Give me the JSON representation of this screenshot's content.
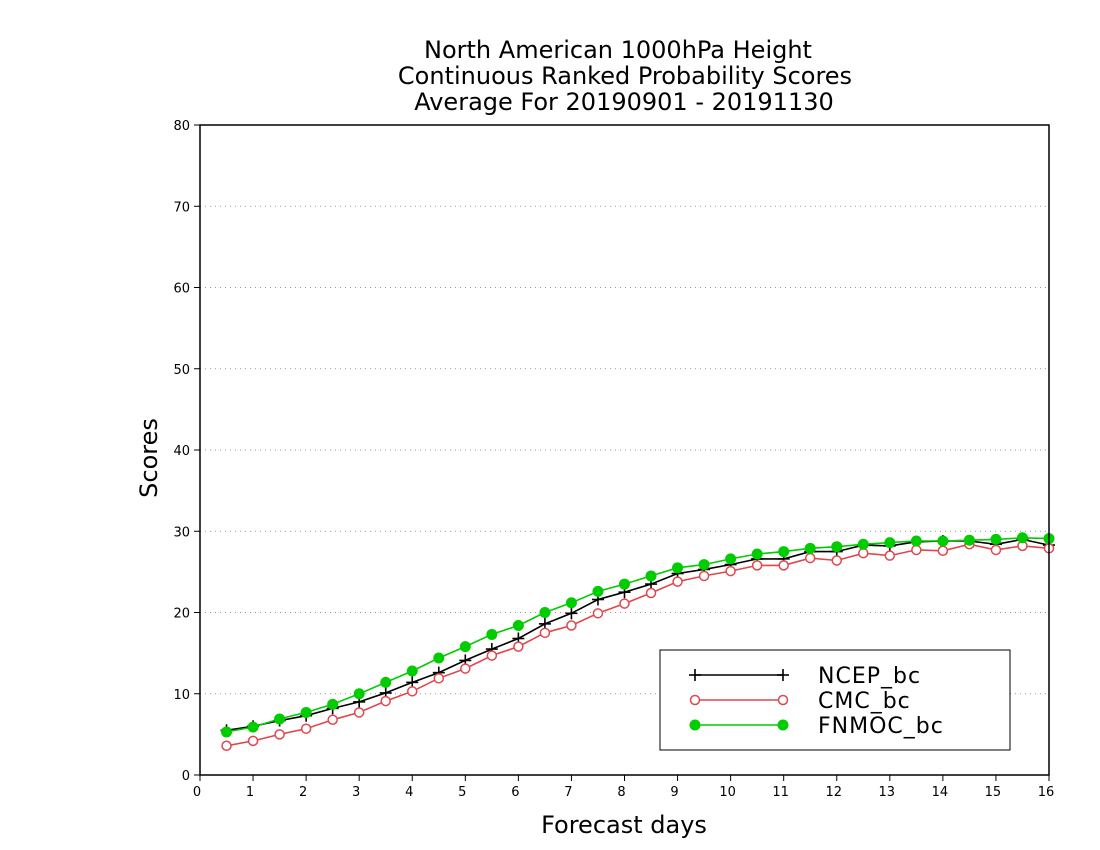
{
  "chart_data": {
    "type": "line",
    "title_lines": [
      "North American 1000hPa Height",
      "Continuous Ranked Probability Scores",
      "Average For 20190901 - 20191130"
    ],
    "xlabel": "Forecast days",
    "ylabel": "Scores",
    "xlim": [
      0,
      16
    ],
    "ylim": [
      0,
      80
    ],
    "xticks": [
      "0",
      "1",
      "2",
      "3",
      "4",
      "5",
      "6",
      "7",
      "8",
      "9",
      "10",
      "11",
      "12",
      "13",
      "14",
      "15",
      "16"
    ],
    "yticks": [
      "0",
      "10",
      "20",
      "30",
      "40",
      "50",
      "60",
      "70",
      "80"
    ],
    "grid": "horizontal dotted",
    "legend_position": "bottom-right",
    "x": [
      0.5,
      1,
      1.5,
      2,
      2.5,
      3,
      3.5,
      4,
      4.5,
      5,
      5.5,
      6,
      6.5,
      7,
      7.5,
      8,
      8.5,
      9,
      9.5,
      10,
      10.5,
      11,
      11.5,
      12,
      12.5,
      13,
      13.5,
      14,
      14.5,
      15,
      15.5,
      16
    ],
    "series": [
      {
        "name": "NCEP_bc",
        "color": "#000000",
        "marker": "plus",
        "values": [
          5.5,
          6.0,
          6.7,
          7.3,
          8.2,
          9.0,
          10.1,
          11.4,
          12.6,
          14.1,
          15.5,
          16.8,
          18.6,
          19.9,
          21.6,
          22.5,
          23.5,
          24.8,
          25.3,
          25.9,
          26.6,
          26.6,
          27.5,
          27.5,
          28.3,
          28.2,
          28.7,
          28.8,
          28.8,
          28.4,
          29.0,
          28.3
        ]
      },
      {
        "name": "CMC_bc",
        "color": "#e0474c",
        "marker": "open-circle",
        "values": [
          3.6,
          4.2,
          5.0,
          5.7,
          6.8,
          7.7,
          9.1,
          10.3,
          11.9,
          13.1,
          14.7,
          15.8,
          17.5,
          18.4,
          19.9,
          21.1,
          22.4,
          23.8,
          24.5,
          25.1,
          25.8,
          25.8,
          26.7,
          26.4,
          27.3,
          27.0,
          27.7,
          27.6,
          28.4,
          27.7,
          28.2,
          27.9
        ]
      },
      {
        "name": "FNMOC_bc",
        "color": "#00cc00",
        "marker": "filled-circle",
        "values": [
          5.3,
          5.9,
          6.9,
          7.7,
          8.7,
          10.0,
          11.4,
          12.8,
          14.4,
          15.8,
          17.3,
          18.4,
          20.0,
          21.2,
          22.6,
          23.5,
          24.5,
          25.5,
          25.9,
          26.6,
          27.2,
          27.5,
          27.9,
          28.1,
          28.4,
          28.6,
          28.8,
          28.8,
          28.9,
          29.0,
          29.2,
          29.1
        ]
      }
    ]
  }
}
